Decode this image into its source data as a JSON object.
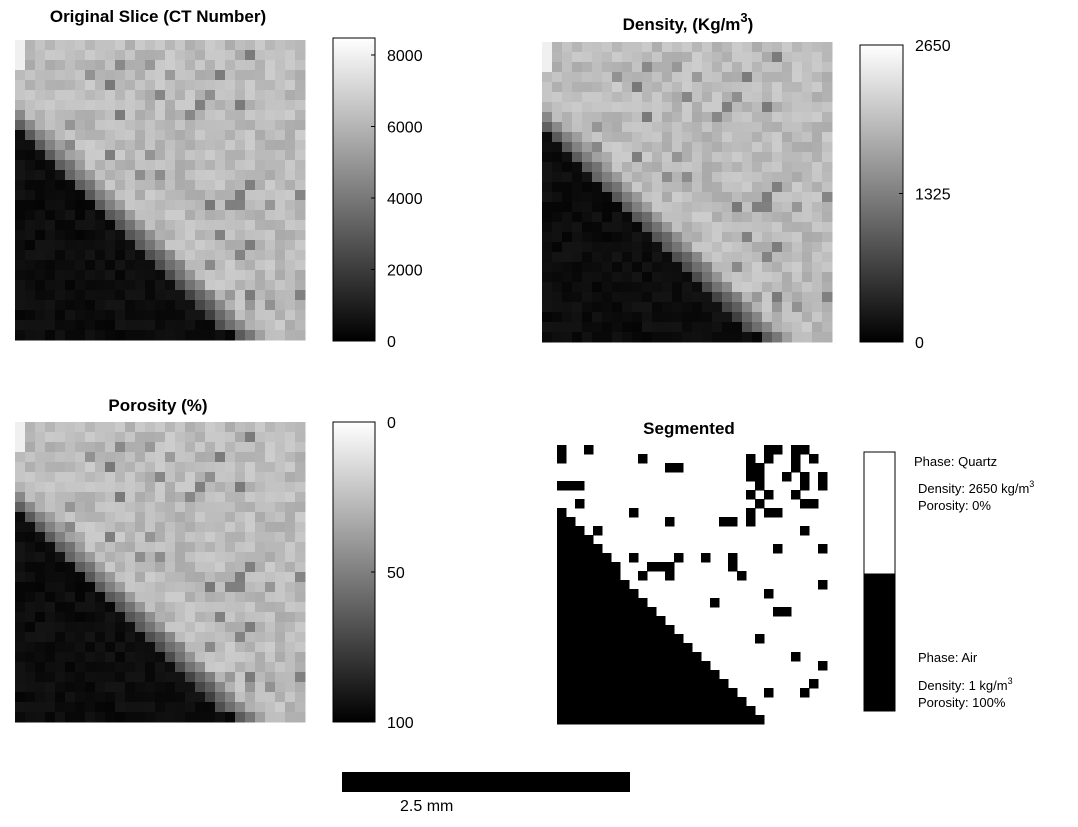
{
  "panels": [
    {
      "title": "Original Slice (CT Number)",
      "colorbar": {
        "lim": [
          0,
          8475
        ],
        "ticks": [
          0,
          2000,
          4000,
          6000,
          8000
        ]
      }
    },
    {
      "title": "Density, (Kg/m",
      "title_sup": "3",
      "title_end": ")",
      "colorbar": {
        "lim": [
          0,
          2650
        ],
        "ticks": [
          0,
          1325,
          2650
        ]
      }
    },
    {
      "title": "Porosity (%)",
      "colorbar": {
        "lim": [
          100,
          0
        ],
        "ticks": [
          0,
          50,
          100
        ]
      }
    }
  ],
  "segmented": {
    "title": "Segmented",
    "phases": [
      {
        "phase": "Phase: Quartz",
        "density": "Density: 2650 kg/m",
        "density_sup": "3",
        "porosity": "Porosity: 0%"
      },
      {
        "phase": "Phase: Air",
        "density": "Density: 1 kg/m",
        "density_sup": "3",
        "porosity": "Porosity: 100%"
      }
    ]
  },
  "scale_bar": {
    "label": "2.5 mm"
  }
}
